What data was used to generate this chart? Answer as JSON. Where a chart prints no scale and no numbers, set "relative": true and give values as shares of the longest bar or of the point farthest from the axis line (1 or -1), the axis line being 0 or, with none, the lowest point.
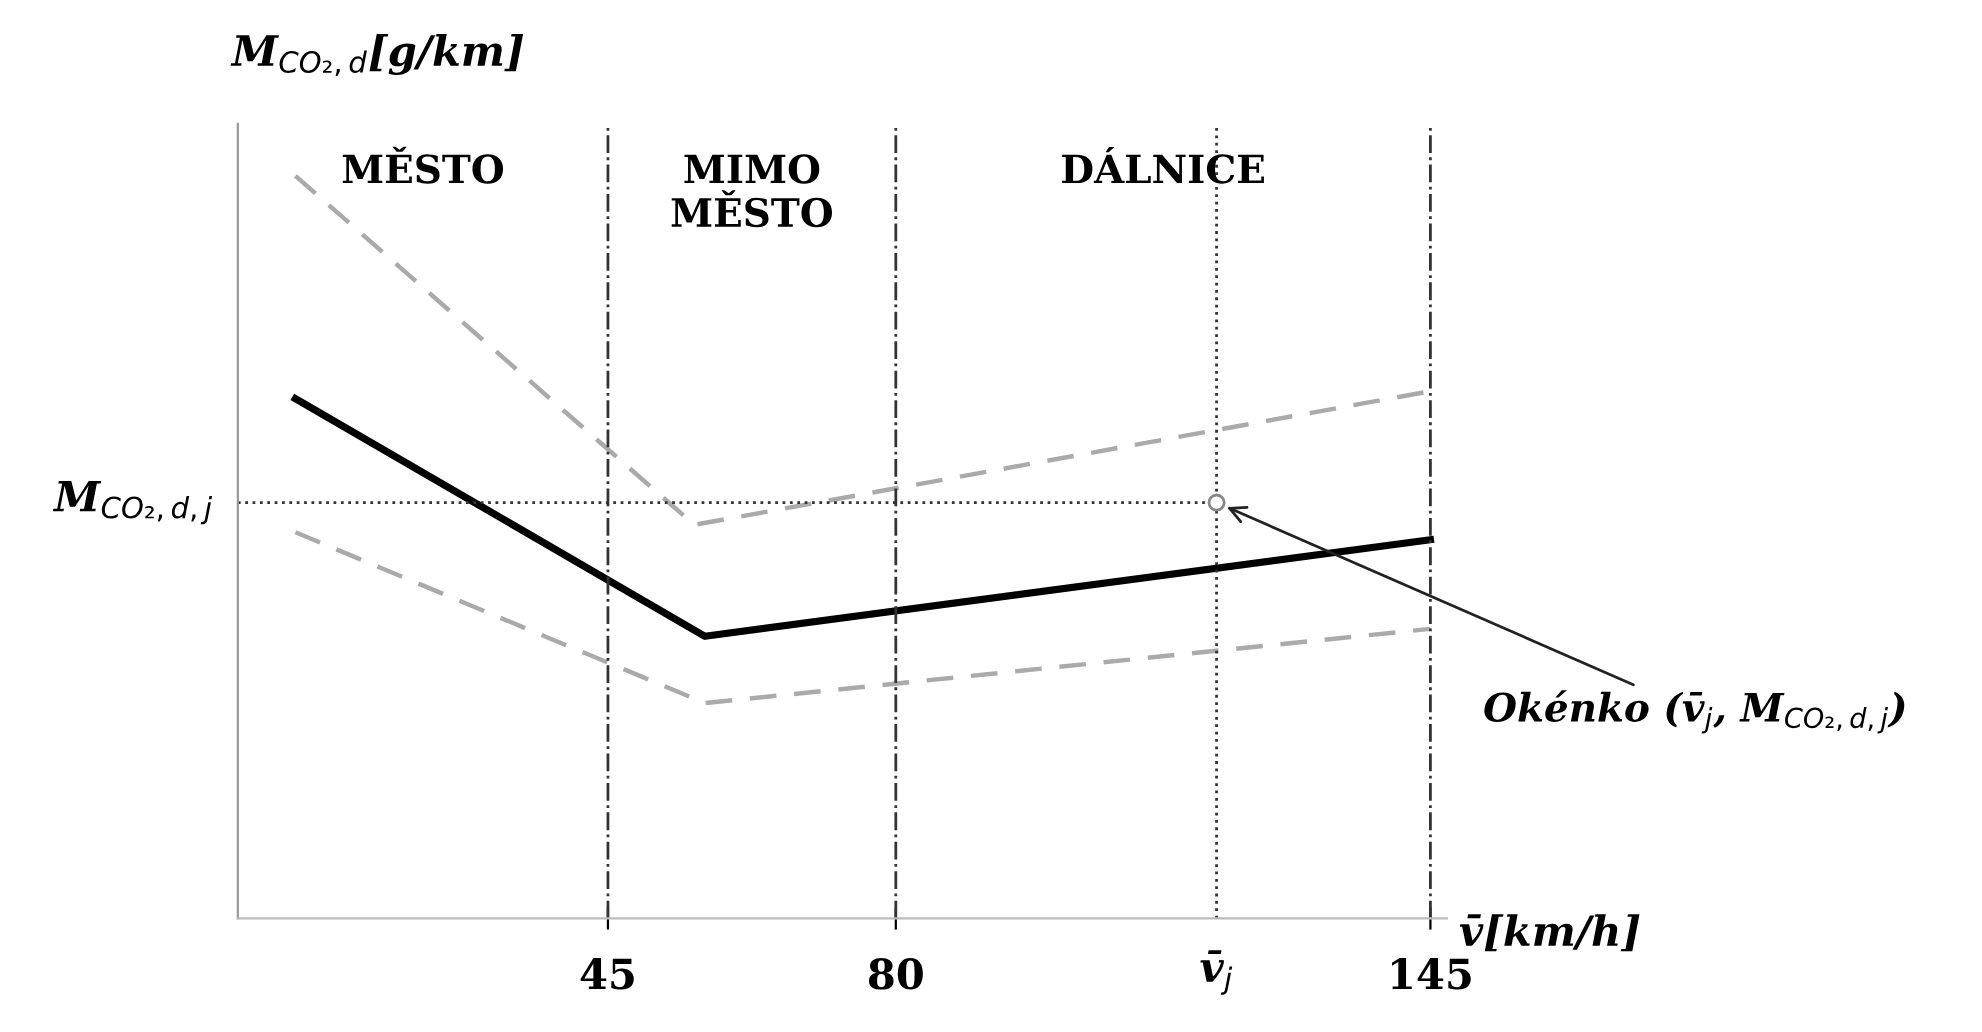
{
  "chart_data": {
    "type": "line",
    "relative": true,
    "xlabel": "v̄[km/h]",
    "ylabel": "M$_{CO₂,d}$[g/km]",
    "xlim": [
      0,
      147
    ],
    "xticks": [
      45,
      80,
      145
    ],
    "series": [
      {
        "color": "#000000",
        "line_style": "solid",
        "x": [
          7,
          56.8,
          145
        ],
        "values": [
          0.7,
          0.38,
          0.51
        ]
      },
      {
        "color": "#aaaaaa",
        "line_style": "dashed",
        "x": [
          7,
          55.5,
          145
        ],
        "values": [
          1.0,
          0.53,
          0.71
        ]
      },
      {
        "color": "#aaaaaa",
        "line_style": "dashed",
        "x": [
          7,
          56.8,
          145
        ],
        "values": [
          0.52,
          0.29,
          0.39
        ]
      },
      {
        "type": "scatter",
        "color": "#888888",
        "marker": "circle",
        "x": [
          119
        ],
        "values": [
          0.56
        ]
      }
    ],
    "ref_lines": [
      {
        "axis": "x",
        "value": 45,
        "line_style": "dashdot",
        "color": "#333333"
      },
      {
        "axis": "x",
        "value": 80,
        "line_style": "dashdot",
        "color": "#333333"
      },
      {
        "axis": "x",
        "value": 145,
        "line_style": "dashdot",
        "color": "#333333"
      },
      {
        "axis": "x",
        "value": 119,
        "label": "v̄$_{j}$",
        "line_style": "dotted",
        "color": "#333333"
      },
      {
        "axis": "y",
        "value": 0.56,
        "label": "M$_{CO₂,d,j}$",
        "line_style": "dotted",
        "color": "#333333"
      }
    ],
    "annotations": [
      "MĚSTO",
      "MIMO\nMĚSTO",
      "DÁLNICE",
      {
        "text": "Okénko (v̄$_{j}$, M$_{CO₂,d,j}$)",
        "x": 119,
        "y": 0.56
      }
    ]
  }
}
